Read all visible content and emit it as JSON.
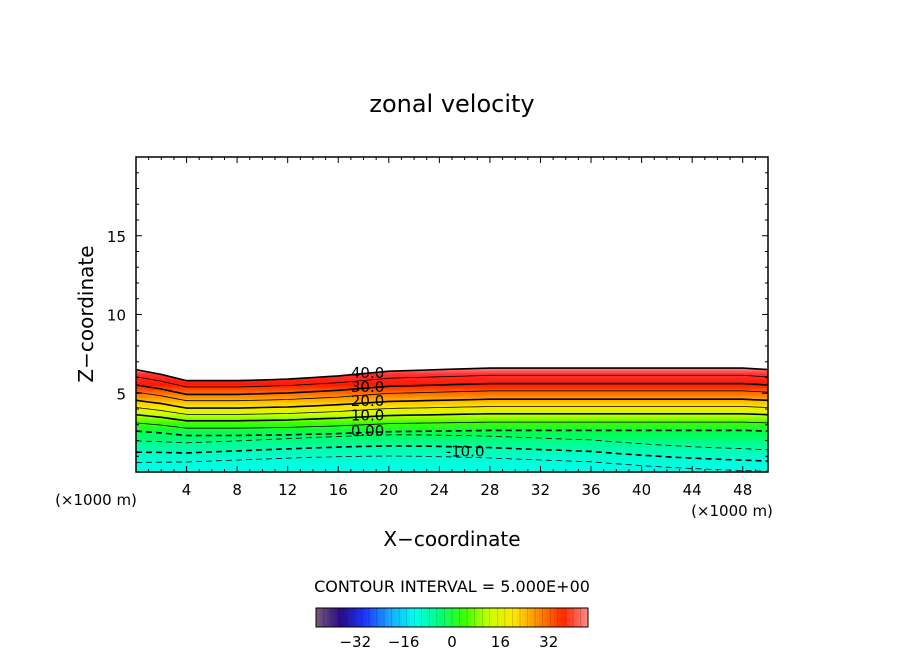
{
  "chart_data": {
    "type": "contour",
    "title": "zonal velocity",
    "xlabel": "X−coordinate",
    "ylabel": "Z−coordinate",
    "x_unit_left": "(×1000 m)",
    "x_unit_right": "(×1000 m)",
    "xlim": [
      0,
      50
    ],
    "ylim": [
      0,
      20
    ],
    "x_ticks": [
      4,
      8,
      12,
      16,
      20,
      24,
      28,
      32,
      36,
      40,
      44,
      48
    ],
    "y_ticks": [
      5,
      10,
      15
    ],
    "contour_interval_text": "CONTOUR INTERVAL = 5.000E+00",
    "contour_interval": 5,
    "contour_labels": [
      {
        "text": "40.0",
        "x": 17.0,
        "z": 6.3
      },
      {
        "text": "30.0",
        "x": 17.0,
        "z": 5.4
      },
      {
        "text": "20.0",
        "x": 17.0,
        "z": 4.5
      },
      {
        "text": "10.0",
        "x": 17.0,
        "z": 3.6
      },
      {
        "text": "0.00",
        "x": 17.0,
        "z": 2.6
      },
      {
        "text": "-10.0",
        "x": 24.5,
        "z": 1.3
      }
    ],
    "top_boundary": {
      "x": [
        0,
        2,
        4,
        8,
        12,
        16,
        20,
        24,
        28,
        32,
        36,
        40,
        44,
        48,
        50
      ],
      "z": [
        6.5,
        6.2,
        5.8,
        5.8,
        5.9,
        6.1,
        6.4,
        6.5,
        6.6,
        6.6,
        6.6,
        6.6,
        6.6,
        6.6,
        6.5
      ]
    },
    "colorbar": {
      "ticks": [
        "−32",
        "−16",
        "0",
        "16",
        "32"
      ],
      "range": [
        -45,
        45
      ],
      "stops": [
        "#7a5a78",
        "#2a0a8a",
        "#1a3aff",
        "#1aa8ff",
        "#00ffee",
        "#00ff7a",
        "#3cff00",
        "#c8ff00",
        "#ffe600",
        "#ff8800",
        "#ff2a00",
        "#ff8a8a"
      ]
    }
  }
}
